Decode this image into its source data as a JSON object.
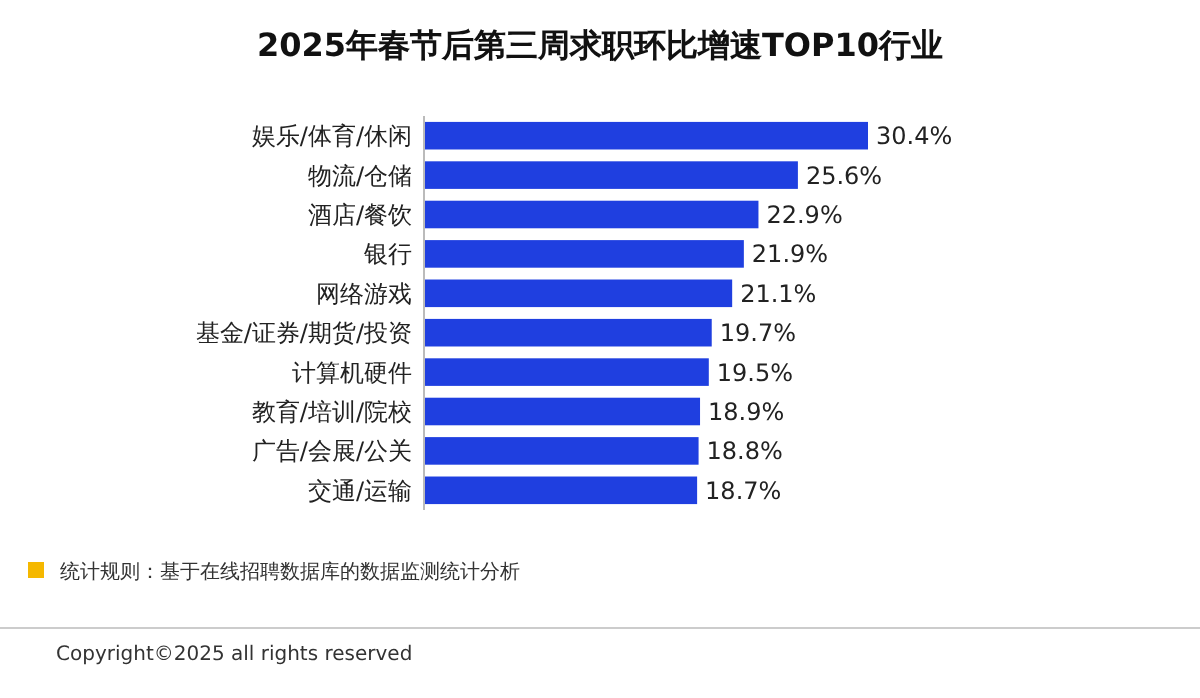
{
  "chart_data": {
    "type": "bar",
    "orientation": "horizontal",
    "title": "2025年春节后第三周求职环比增速TOP10行业",
    "categories": [
      "娱乐/体育/休闲",
      "物流/仓储",
      "酒店/餐饮",
      "银行",
      "网络游戏",
      "基金/证券/期货/投资",
      "计算机硬件",
      "教育/培训/院校",
      "广告/会展/公关",
      "交通/运输"
    ],
    "values": [
      30.4,
      25.6,
      22.9,
      21.9,
      21.1,
      19.7,
      19.5,
      18.9,
      18.8,
      18.7
    ],
    "value_labels": [
      "30.4%",
      "25.6%",
      "22.9%",
      "21.9%",
      "21.1%",
      "19.7%",
      "19.5%",
      "18.9%",
      "18.8%",
      "18.7%"
    ],
    "color": "#1f3fe0",
    "annotations": [
      "统计规则：基于在线招聘数据库的数据监测统计分析",
      "Copyright©2025 all rights reserved"
    ]
  }
}
